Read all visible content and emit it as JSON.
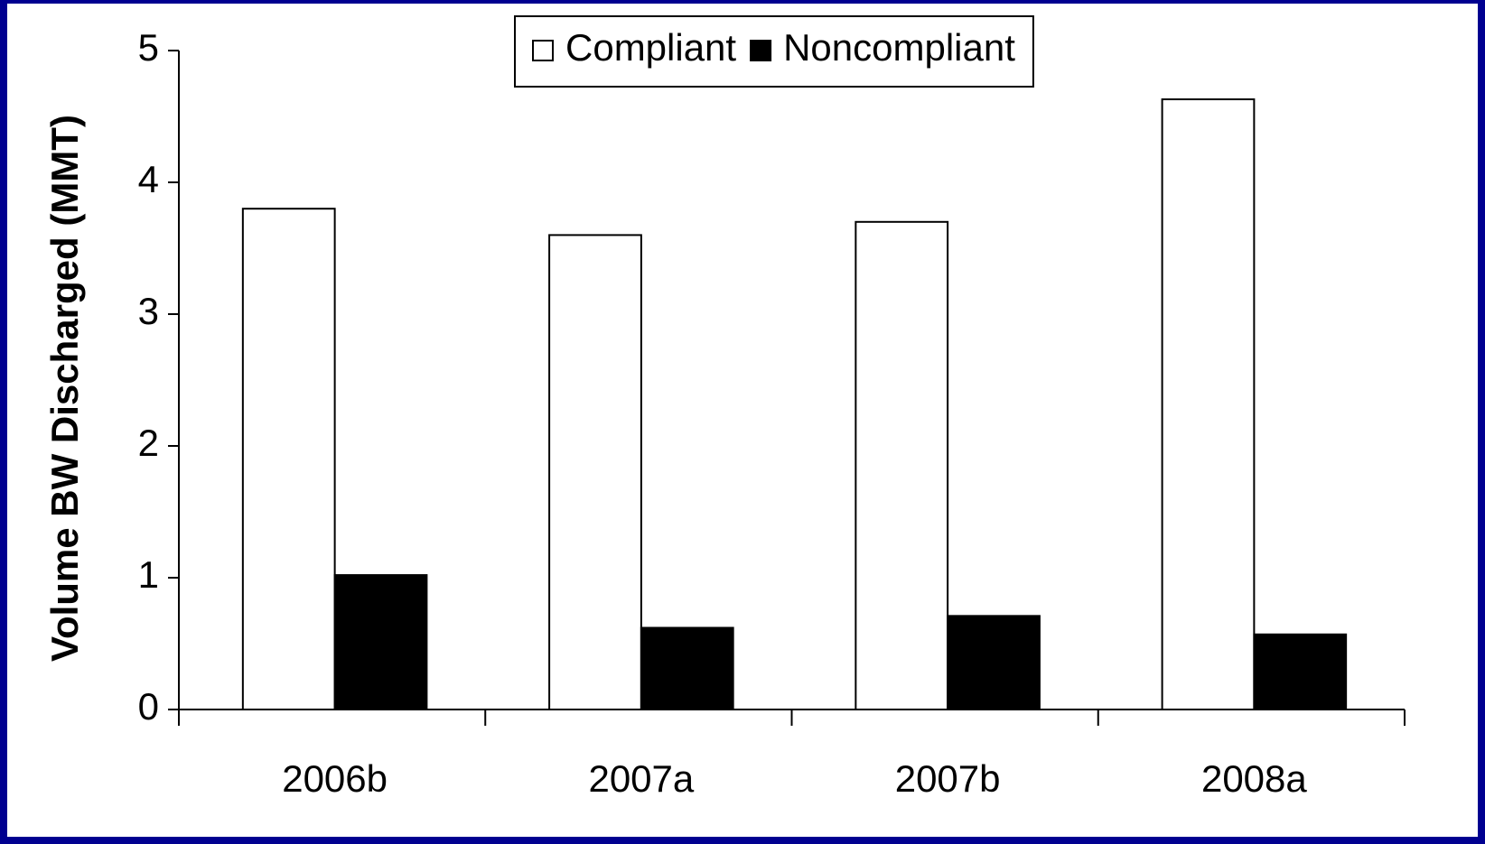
{
  "chart_data": {
    "type": "bar",
    "y_label": "Volume BW Discharged (MMT)",
    "categories": [
      "2006b",
      "2007a",
      "2007b",
      "2008a"
    ],
    "series": [
      {
        "name": "Compliant",
        "color": "#ffffff",
        "values": [
          3.8,
          3.6,
          3.7,
          4.63
        ]
      },
      {
        "name": "Noncompliant",
        "color": "#000000",
        "values": [
          1.02,
          0.62,
          0.71,
          0.57
        ]
      }
    ],
    "ylim": [
      0,
      5
    ],
    "yticks": [
      0,
      1,
      2,
      3,
      4,
      5
    ],
    "legend": "top"
  }
}
